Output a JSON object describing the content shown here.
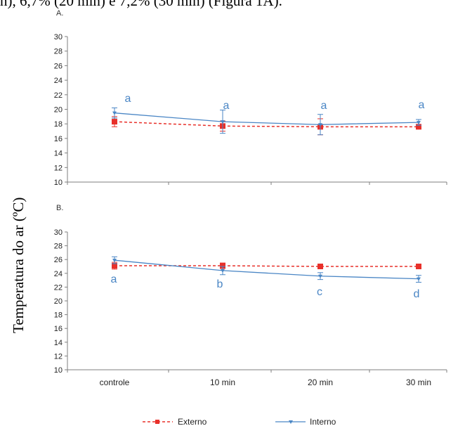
{
  "top_text": "n), 6,7% (20 min) e 7,2% (30 min) (Figura 1A).",
  "colors": {
    "externo": "#e8302a",
    "interno": "#4a86c5",
    "axis": "#7f7f7f"
  },
  "chart_data": [
    {
      "type": "line",
      "panel_label": "A.",
      "categories": [
        "controle",
        "10 min",
        "20 min",
        "30 min"
      ],
      "ylim": [
        10,
        30
      ],
      "yticks": [
        "10",
        "12",
        "14",
        "16",
        "18",
        "20",
        "22",
        "24",
        "26",
        "28",
        "30"
      ],
      "ylabel": "Temperatura do ar (ºC)",
      "series": [
        {
          "name": "Externo",
          "values": [
            18.3,
            17.7,
            17.6,
            17.6
          ],
          "errors": [
            0.7,
            0.7,
            1.1,
            0.3
          ]
        },
        {
          "name": "Interno",
          "values": [
            19.5,
            18.3,
            17.9,
            18.2
          ],
          "errors": [
            0.7,
            1.6,
            1.4,
            0.4
          ]
        }
      ],
      "annotations": [
        "a",
        "a",
        "a",
        "a"
      ]
    },
    {
      "type": "line",
      "panel_label": "B.",
      "categories": [
        "controle",
        "10 min",
        "20 min",
        "30 min"
      ],
      "ylim": [
        10,
        30
      ],
      "yticks": [
        "10",
        "12",
        "14",
        "16",
        "18",
        "20",
        "22",
        "24",
        "26",
        "28",
        "30"
      ],
      "series": [
        {
          "name": "Externo",
          "values": [
            25.1,
            25.1,
            25.0,
            25.0
          ],
          "errors": [
            0.5,
            0.4,
            0.3,
            0.3
          ]
        },
        {
          "name": "Interno",
          "values": [
            25.9,
            24.4,
            23.6,
            23.2
          ],
          "errors": [
            0.5,
            0.6,
            0.5,
            0.5
          ]
        }
      ],
      "annotations": [
        "a",
        "b",
        "c",
        "d"
      ]
    }
  ],
  "legend": [
    "Externo",
    "Interno"
  ]
}
